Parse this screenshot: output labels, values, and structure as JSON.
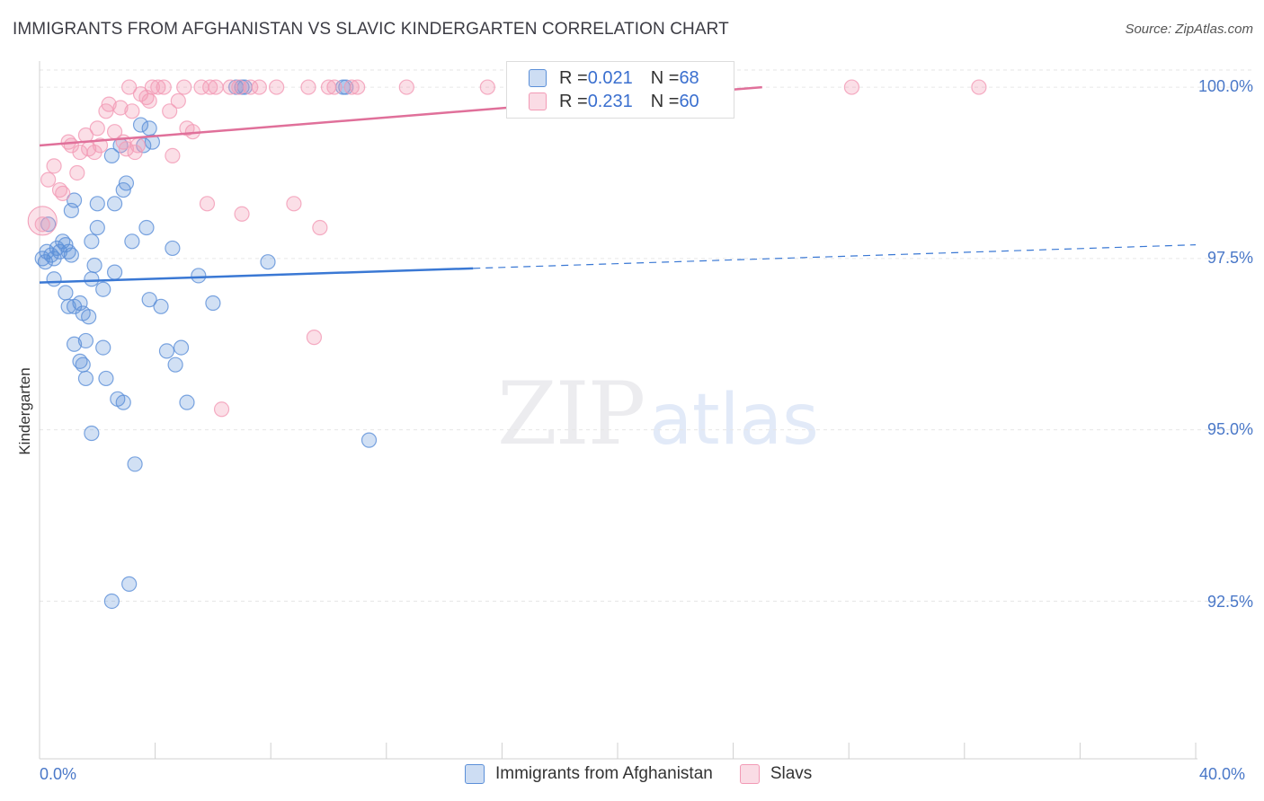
{
  "title": "IMMIGRANTS FROM AFGHANISTAN VS SLAVIC KINDERGARTEN CORRELATION CHART",
  "source": "Source: ZipAtlas.com",
  "watermark": {
    "zip": "ZIP",
    "atlas": "atlas"
  },
  "legend_top": [
    {
      "r_label": "R = ",
      "r_value": "0.021",
      "n_label": "N = ",
      "n_value": "68",
      "color": "#5b8fd8"
    },
    {
      "r_label": "R = ",
      "r_value": "0.231",
      "n_label": "N = ",
      "n_value": "60",
      "color": "#f29ab5"
    }
  ],
  "chart_data": {
    "type": "scatter",
    "title": "IMMIGRANTS FROM AFGHANISTAN VS SLAVIC KINDERGARTEN CORRELATION CHART",
    "xlabel": "",
    "ylabel": "Kindergarten",
    "xlim": [
      0,
      40
    ],
    "ylim": [
      90.2,
      100.25
    ],
    "x_tick_labels": [
      "0.0%",
      "40.0%"
    ],
    "y_ticks": [
      100.0,
      97.5,
      95.0,
      92.5
    ],
    "y_tick_labels": [
      "100.0%",
      "97.5%",
      "95.0%",
      "92.5%"
    ],
    "grid": true,
    "legend_position": "bottom-center",
    "series": [
      {
        "name": "Immigrants from Afghanistan",
        "color": "#5b8fd8",
        "trend": {
          "x": [
            0,
            40
          ],
          "y": [
            97.15,
            97.7
          ],
          "solid_until": 15
        },
        "points": [
          [
            0.1,
            97.5
          ],
          [
            0.2,
            97.45
          ],
          [
            0.25,
            97.6
          ],
          [
            0.3,
            98.0
          ],
          [
            0.4,
            97.55
          ],
          [
            0.5,
            97.5
          ],
          [
            0.6,
            97.65
          ],
          [
            0.7,
            97.6
          ],
          [
            0.8,
            97.75
          ],
          [
            0.9,
            97.7
          ],
          [
            1.0,
            97.6
          ],
          [
            1.1,
            97.55
          ],
          [
            0.5,
            97.2
          ],
          [
            0.9,
            97.0
          ],
          [
            1.0,
            96.8
          ],
          [
            1.2,
            96.8
          ],
          [
            1.4,
            96.85
          ],
          [
            1.5,
            96.7
          ],
          [
            1.7,
            96.65
          ],
          [
            1.2,
            96.25
          ],
          [
            1.4,
            96.0
          ],
          [
            1.5,
            95.95
          ],
          [
            1.6,
            95.75
          ],
          [
            1.6,
            96.3
          ],
          [
            1.8,
            94.95
          ],
          [
            1.1,
            98.2
          ],
          [
            1.2,
            98.35
          ],
          [
            1.8,
            97.2
          ],
          [
            1.8,
            97.75
          ],
          [
            1.9,
            97.4
          ],
          [
            2.0,
            97.95
          ],
          [
            2.0,
            98.3
          ],
          [
            2.2,
            97.05
          ],
          [
            2.2,
            96.2
          ],
          [
            2.3,
            95.75
          ],
          [
            2.5,
            99.0
          ],
          [
            2.5,
            92.5
          ],
          [
            2.6,
            97.3
          ],
          [
            2.6,
            98.3
          ],
          [
            2.7,
            95.45
          ],
          [
            2.8,
            99.15
          ],
          [
            2.9,
            95.4
          ],
          [
            2.9,
            98.5
          ],
          [
            3.0,
            98.6
          ],
          [
            3.1,
            92.75
          ],
          [
            3.2,
            97.75
          ],
          [
            3.3,
            94.5
          ],
          [
            3.5,
            99.45
          ],
          [
            3.6,
            99.15
          ],
          [
            3.7,
            97.95
          ],
          [
            3.8,
            99.4
          ],
          [
            3.8,
            96.9
          ],
          [
            3.9,
            99.2
          ],
          [
            4.2,
            96.8
          ],
          [
            4.4,
            96.15
          ],
          [
            4.6,
            97.65
          ],
          [
            4.7,
            95.95
          ],
          [
            4.9,
            96.2
          ],
          [
            5.1,
            95.4
          ],
          [
            5.5,
            97.25
          ],
          [
            6.0,
            96.85
          ],
          [
            6.8,
            100.0
          ],
          [
            7.0,
            100.0
          ],
          [
            7.1,
            100.0
          ],
          [
            7.9,
            97.45
          ],
          [
            10.5,
            100.0
          ],
          [
            10.6,
            100.0
          ],
          [
            11.4,
            94.85
          ]
        ]
      },
      {
        "name": "Slavs",
        "color": "#f29ab5",
        "trend": {
          "x": [
            0,
            25
          ],
          "y": [
            99.15,
            100.0
          ]
        },
        "points": [
          [
            0.1,
            98.0
          ],
          [
            0.3,
            98.65
          ],
          [
            0.5,
            98.85
          ],
          [
            0.7,
            98.5
          ],
          [
            0.8,
            98.45
          ],
          [
            1.0,
            99.2
          ],
          [
            1.1,
            99.15
          ],
          [
            1.3,
            98.75
          ],
          [
            1.4,
            99.05
          ],
          [
            1.6,
            99.3
          ],
          [
            1.7,
            99.1
          ],
          [
            1.9,
            99.05
          ],
          [
            2.0,
            99.4
          ],
          [
            2.1,
            99.15
          ],
          [
            2.3,
            99.65
          ],
          [
            2.4,
            99.75
          ],
          [
            2.6,
            99.35
          ],
          [
            2.8,
            99.7
          ],
          [
            2.9,
            99.2
          ],
          [
            3.0,
            99.1
          ],
          [
            3.1,
            100.0
          ],
          [
            3.2,
            99.65
          ],
          [
            3.3,
            99.05
          ],
          [
            3.4,
            99.15
          ],
          [
            3.5,
            99.9
          ],
          [
            3.7,
            99.85
          ],
          [
            3.8,
            99.8
          ],
          [
            3.9,
            100.0
          ],
          [
            4.1,
            100.0
          ],
          [
            4.3,
            100.0
          ],
          [
            4.5,
            99.65
          ],
          [
            4.6,
            99.0
          ],
          [
            4.8,
            99.8
          ],
          [
            5.0,
            100.0
          ],
          [
            5.1,
            99.4
          ],
          [
            5.3,
            99.35
          ],
          [
            5.6,
            100.0
          ],
          [
            5.8,
            98.3
          ],
          [
            5.9,
            100.0
          ],
          [
            6.1,
            100.0
          ],
          [
            6.3,
            95.3
          ],
          [
            6.6,
            100.0
          ],
          [
            6.9,
            100.0
          ],
          [
            7.0,
            98.15
          ],
          [
            7.3,
            100.0
          ],
          [
            7.6,
            100.0
          ],
          [
            8.2,
            100.0
          ],
          [
            8.8,
            98.3
          ],
          [
            9.3,
            100.0
          ],
          [
            9.5,
            96.35
          ],
          [
            9.7,
            97.95
          ],
          [
            10.0,
            100.0
          ],
          [
            10.2,
            100.0
          ],
          [
            10.8,
            100.0
          ],
          [
            11.0,
            100.0
          ],
          [
            12.7,
            100.0
          ],
          [
            15.5,
            100.0
          ],
          [
            20.5,
            100.0
          ],
          [
            28.1,
            100.0
          ],
          [
            32.5,
            100.0
          ]
        ]
      }
    ]
  }
}
